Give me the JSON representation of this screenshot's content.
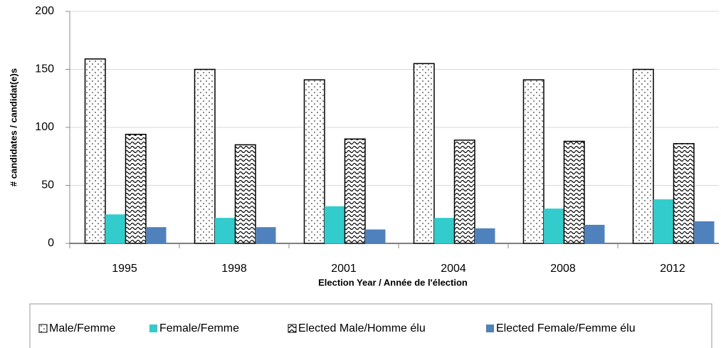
{
  "chart_data": {
    "type": "bar",
    "x_label": "Election Year / Année  de l'élection",
    "y_label": "# candidates / candidat(e)s",
    "categories": [
      "1995",
      "1998",
      "2001",
      "2004",
      "2008",
      "2012"
    ],
    "series": [
      {
        "name": "Male/Femme",
        "color": "#ffffff",
        "pattern": "dots",
        "values": [
          159,
          150,
          141,
          155,
          141,
          150
        ]
      },
      {
        "name": "Female/Femme",
        "color": "#33cccc",
        "values": [
          25,
          22,
          32,
          22,
          30,
          38
        ]
      },
      {
        "name": "Elected Male/Homme élu",
        "color": "#ffffff",
        "pattern": "waves",
        "values": [
          94,
          85,
          90,
          89,
          88,
          86
        ]
      },
      {
        "name": "Elected Female/Femme élu",
        "color": "#4f81bd",
        "values": [
          14,
          14,
          12,
          13,
          16,
          19
        ]
      }
    ],
    "ylim": [
      0,
      200
    ],
    "yticks": [
      0,
      50,
      100,
      150,
      200
    ],
    "grid": true,
    "legend": "bottom"
  }
}
